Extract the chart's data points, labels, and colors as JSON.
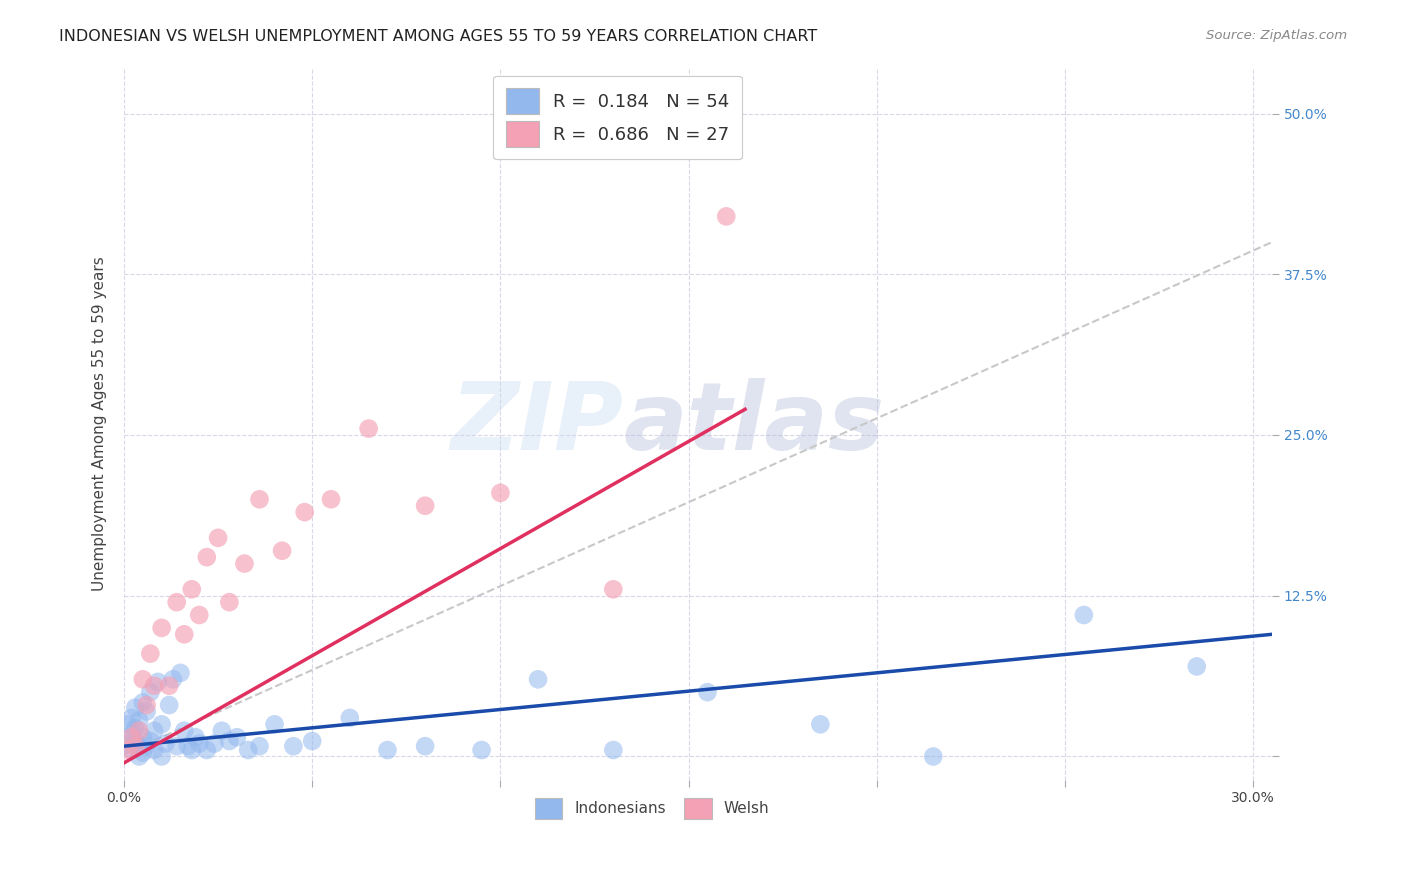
{
  "title": "INDONESIAN VS WELSH UNEMPLOYMENT AMONG AGES 55 TO 59 YEARS CORRELATION CHART",
  "source": "Source: ZipAtlas.com",
  "ylabel": "Unemployment Among Ages 55 to 59 years",
  "xlim": [
    0.0,
    0.305
  ],
  "ylim": [
    -0.018,
    0.535
  ],
  "xticks": [
    0.0,
    0.05,
    0.1,
    0.15,
    0.2,
    0.25,
    0.3
  ],
  "yticks": [
    0.0,
    0.125,
    0.25,
    0.375,
    0.5
  ],
  "background_color": "#ffffff",
  "grid_color": "#d8d8e8",
  "indonesian_color": "#93b8ee",
  "welsh_color": "#f4a0b5",
  "indonesian_line_color": "#1a4aaa",
  "welsh_line_color": "#e03060",
  "ref_line_color": "#c8c8c8",
  "indonesian_x": [
    0.001,
    0.001,
    0.002,
    0.002,
    0.002,
    0.003,
    0.003,
    0.003,
    0.004,
    0.004,
    0.004,
    0.005,
    0.005,
    0.005,
    0.006,
    0.006,
    0.007,
    0.007,
    0.008,
    0.008,
    0.009,
    0.01,
    0.01,
    0.011,
    0.012,
    0.013,
    0.014,
    0.015,
    0.016,
    0.017,
    0.018,
    0.019,
    0.02,
    0.022,
    0.024,
    0.026,
    0.028,
    0.03,
    0.033,
    0.036,
    0.04,
    0.045,
    0.05,
    0.06,
    0.07,
    0.08,
    0.095,
    0.11,
    0.13,
    0.155,
    0.185,
    0.215,
    0.255,
    0.285
  ],
  "indonesian_y": [
    0.025,
    0.01,
    0.03,
    0.018,
    0.005,
    0.022,
    0.012,
    0.038,
    0.008,
    0.028,
    0.0,
    0.015,
    0.042,
    0.003,
    0.035,
    0.008,
    0.05,
    0.012,
    0.02,
    0.005,
    0.058,
    0.0,
    0.025,
    0.01,
    0.04,
    0.06,
    0.008,
    0.065,
    0.02,
    0.008,
    0.005,
    0.015,
    0.01,
    0.005,
    0.01,
    0.02,
    0.012,
    0.015,
    0.005,
    0.008,
    0.025,
    0.008,
    0.012,
    0.03,
    0.005,
    0.008,
    0.005,
    0.06,
    0.005,
    0.05,
    0.025,
    0.0,
    0.11,
    0.07
  ],
  "welsh_x": [
    0.001,
    0.002,
    0.003,
    0.004,
    0.005,
    0.006,
    0.007,
    0.008,
    0.01,
    0.012,
    0.014,
    0.016,
    0.018,
    0.02,
    0.022,
    0.025,
    0.028,
    0.032,
    0.036,
    0.042,
    0.048,
    0.055,
    0.065,
    0.08,
    0.1,
    0.13,
    0.16
  ],
  "welsh_y": [
    0.005,
    0.015,
    0.008,
    0.02,
    0.06,
    0.04,
    0.08,
    0.055,
    0.1,
    0.055,
    0.12,
    0.095,
    0.13,
    0.11,
    0.155,
    0.17,
    0.12,
    0.15,
    0.2,
    0.16,
    0.19,
    0.2,
    0.255,
    0.195,
    0.205,
    0.13,
    0.42
  ],
  "indo_trend": [
    0.0,
    0.305,
    0.008,
    0.095
  ],
  "welsh_trend_x": [
    0.0,
    0.165
  ],
  "welsh_trend_y": [
    -0.005,
    0.27
  ],
  "ref_line": [
    0.0,
    0.305,
    0.002,
    0.4
  ]
}
